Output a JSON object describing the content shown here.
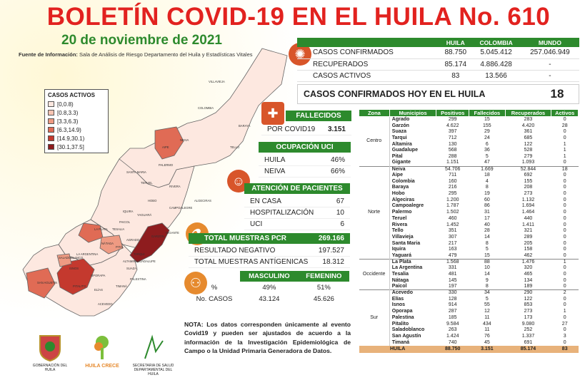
{
  "title": "BOLETÍN COVID-19 EN EL HUILA No. 610",
  "date": "20 de noviembre de 2021",
  "source_label": "Fuente de Información:",
  "source_text": "Sala de Análisis de Riesgo Departamento del Huila y Estadísticas Vitales",
  "legend": {
    "title": "CASOS ACTIVOS",
    "items": [
      {
        "label": "[0,0.8)",
        "color": "#fde8e0"
      },
      {
        "label": "[0.8,3.3)",
        "color": "#f7c4b2"
      },
      {
        "label": "[3.3,6.3)",
        "color": "#ee9a82"
      },
      {
        "label": "[6.3,14.9)",
        "color": "#e06b55"
      },
      {
        "label": "[14.9,30.1)",
        "color": "#c4392e"
      },
      {
        "label": "[30.1,37.5]",
        "color": "#8e1c1e"
      }
    ]
  },
  "map_labels": [
    "VILLAVIEJA",
    "BARAYA",
    "TELLO",
    "NEIVA",
    "AIPE",
    "PALERMO",
    "SANTA MARIA",
    "TERUEL",
    "RIVERA",
    "CAMPOALEGRE",
    "ALGECIRAS",
    "HOBO",
    "YAGUARÁ",
    "IQUIRA",
    "GIGANTE",
    "LA PLATA",
    "PAICOL",
    "TESALIA",
    "NÁTAGA",
    "GARZON",
    "PITAL",
    "AGRADO",
    "TARQUI",
    "ALTAMIRA",
    "LA ARGENTINA",
    "SAN AGUSTIN",
    "SALADOBLANCO",
    "OPORAPA",
    "ISNOS",
    "ELÍAS",
    "TIMANÁ",
    "ACEVEDO",
    "PALESTINA",
    "PITALITO",
    "SUAZA",
    "GUADALUPE",
    "COLOMBIA"
  ],
  "general": {
    "headers": [
      "",
      "HUILA",
      "COLOMBIA",
      "MUNDO"
    ],
    "rows": [
      {
        "label": "CASOS CONFIRMADOS",
        "huila": "88.750",
        "colombia": "5.045.412",
        "mundo": "257.046.949"
      },
      {
        "label": "RECUPERADOS",
        "huila": "85.174",
        "colombia": "4.886.428",
        "mundo": "-"
      },
      {
        "label": "CASOS ACTIVOS",
        "huila": "83",
        "colombia": "13.566",
        "mundo": "-"
      }
    ]
  },
  "hoy": {
    "label": "CASOS CONFIRMADOS HOY EN EL HUILA",
    "value": "18"
  },
  "fallecidos": {
    "title": "FALLECIDOS",
    "label": "POR COVID19",
    "value": "3.151"
  },
  "uci": {
    "title": "OCUPACIÓN UCI",
    "rows": [
      {
        "label": "HUILA",
        "value": "46%"
      },
      {
        "label": "NEIVA",
        "value": "66%"
      }
    ]
  },
  "atencion": {
    "title": "ATENCIÓN DE PACIENTES",
    "rows": [
      {
        "label": "EN CASA",
        "value": "67"
      },
      {
        "label": "HOSPITALIZACIÓN",
        "value": "10"
      },
      {
        "label": "UCI",
        "value": "6"
      }
    ]
  },
  "muestras": {
    "title": "TOTAL MUESTRAS PCR",
    "title_value": "269.166",
    "rows": [
      {
        "label": "RESULTADO NEGATIVO",
        "value": "197.527"
      },
      {
        "label": "TOTAL MUESTRAS ANTÍGENICAS",
        "value": "18.312"
      }
    ]
  },
  "sexo": {
    "headers": [
      "",
      "MASCULINO",
      "FEMENINO"
    ],
    "rows": [
      {
        "label": "%",
        "m": "49%",
        "f": "51%"
      },
      {
        "label": "No. CASOS",
        "m": "43.124",
        "f": "45.626"
      }
    ]
  },
  "nota": "NOTA: Los datos corresponden únicamente al evento Covid19 y pueden ser ajustados de acuerdo a la información de la Investigación Epidemiológica de Campo o la Unidad Primaria Generadora de Datos.",
  "logos": [
    "GOBERNACIÓN DEL HUILA",
    "HUILA CRECE",
    "SECRETARIA DE SALUD DEPARTAMENTAL DEL HUILA"
  ],
  "municipios": {
    "headers": [
      "Zona",
      "Municipios",
      "Positivos",
      "Fallecidos",
      "Recuperados",
      "Activos"
    ],
    "zones": [
      {
        "zone": "Centro",
        "rows": [
          [
            "Agrado",
            "299",
            "15",
            "283",
            "0"
          ],
          [
            "Garzón",
            "4.622",
            "155",
            "4.420",
            "28"
          ],
          [
            "Suaza",
            "397",
            "29",
            "361",
            "0"
          ],
          [
            "Tarqui",
            "712",
            "24",
            "685",
            "0"
          ],
          [
            "Altamira",
            "130",
            "6",
            "122",
            "1"
          ],
          [
            "Guadalupe",
            "568",
            "36",
            "528",
            "1"
          ],
          [
            "Pital",
            "288",
            "5",
            "279",
            "1"
          ],
          [
            "Gigante",
            "1.151",
            "47",
            "1.093",
            "0"
          ]
        ]
      },
      {
        "zone": "Norte",
        "rows": [
          [
            "Neiva",
            "54.706",
            "1.669",
            "52.844",
            "18"
          ],
          [
            "Aipe",
            "711",
            "18",
            "692",
            "0"
          ],
          [
            "Colombia",
            "160",
            "4",
            "155",
            "0"
          ],
          [
            "Baraya",
            "216",
            "8",
            "208",
            "0"
          ],
          [
            "Hobo",
            "295",
            "19",
            "273",
            "0"
          ],
          [
            "Algeciras",
            "1.200",
            "60",
            "1.132",
            "0"
          ],
          [
            "Campoalegre",
            "1.787",
            "86",
            "1.694",
            "0"
          ],
          [
            "Palermo",
            "1.502",
            "31",
            "1.464",
            "0"
          ],
          [
            "Teruel",
            "460",
            "17",
            "440",
            "0"
          ],
          [
            "Rivera",
            "1.452",
            "40",
            "1.411",
            "0"
          ],
          [
            "Tello",
            "351",
            "28",
            "321",
            "0"
          ],
          [
            "Villavieja",
            "307",
            "14",
            "289",
            "0"
          ],
          [
            "Santa Maria",
            "217",
            "8",
            "205",
            "0"
          ],
          [
            "Iquira",
            "163",
            "5",
            "158",
            "0"
          ],
          [
            "Yaguará",
            "479",
            "15",
            "462",
            "0"
          ]
        ]
      },
      {
        "zone": "Occidente",
        "rows": [
          [
            "La Plata",
            "1.568",
            "88",
            "1.476",
            "1"
          ],
          [
            "La Argentina",
            "331",
            "10",
            "320",
            "0"
          ],
          [
            "Tesalia",
            "481",
            "14",
            "465",
            "0"
          ],
          [
            "Nátaga",
            "145",
            "9",
            "134",
            "0"
          ],
          [
            "Paicol",
            "197",
            "8",
            "189",
            "0"
          ]
        ]
      },
      {
        "zone": "Sur",
        "rows": [
          [
            "Acevedo",
            "330",
            "34",
            "290",
            "2"
          ],
          [
            "Elías",
            "128",
            "5",
            "122",
            "0"
          ],
          [
            "Isnos",
            "914",
            "55",
            "853",
            "0"
          ],
          [
            "Oporapa",
            "287",
            "12",
            "273",
            "1"
          ],
          [
            "Palestina",
            "185",
            "11",
            "173",
            "0"
          ],
          [
            "Pitalito",
            "9.584",
            "434",
            "9.080",
            "27"
          ],
          [
            "Saladoblanco",
            "263",
            "11",
            "252",
            "0"
          ],
          [
            "San Agustín",
            "1.424",
            "76",
            "1.337",
            "3"
          ],
          [
            "Timaná",
            "740",
            "45",
            "691",
            "0"
          ]
        ]
      }
    ],
    "total": [
      "HUILA",
      "88.750",
      "3.151",
      "85.174",
      "83"
    ]
  }
}
